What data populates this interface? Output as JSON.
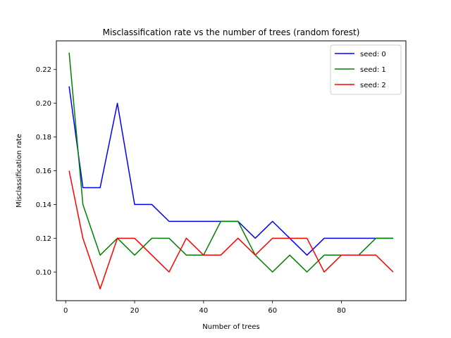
{
  "chart_data": {
    "type": "line",
    "title": "Misclassification rate vs the number of trees (random forest)",
    "xlabel": "Number of trees",
    "ylabel": "Misclassification rate",
    "xlim": [
      -2.7,
      98.7
    ],
    "ylim": [
      0.083,
      0.237
    ],
    "xticks": [
      0,
      20,
      40,
      60,
      80
    ],
    "yticks": [
      0.1,
      0.12,
      0.14,
      0.16,
      0.18,
      0.2,
      0.22
    ],
    "grid": false,
    "legend_position": "top-right",
    "x": [
      1,
      5,
      10,
      15,
      20,
      25,
      30,
      35,
      40,
      45,
      50,
      55,
      60,
      65,
      70,
      75,
      80,
      85,
      90,
      95
    ],
    "series": [
      {
        "name": "seed: 0",
        "color": "#0000ff",
        "values": [
          0.21,
          0.15,
          0.15,
          0.2,
          0.14,
          0.14,
          0.13,
          0.13,
          0.13,
          0.13,
          0.13,
          0.12,
          0.13,
          0.12,
          0.11,
          0.12,
          0.12,
          0.12,
          0.12,
          0.12
        ]
      },
      {
        "name": "seed: 1",
        "color": "#008000",
        "values": [
          0.23,
          0.14,
          0.11,
          0.12,
          0.11,
          0.12,
          0.12,
          0.11,
          0.11,
          0.13,
          0.13,
          0.11,
          0.1,
          0.11,
          0.1,
          0.11,
          0.11,
          0.11,
          0.12,
          0.12
        ]
      },
      {
        "name": "seed: 2",
        "color": "#ff0000",
        "values": [
          0.16,
          0.12,
          0.09,
          0.12,
          0.12,
          0.11,
          0.1,
          0.12,
          0.11,
          0.11,
          0.12,
          0.11,
          0.12,
          0.12,
          0.12,
          0.1,
          0.11,
          0.11,
          0.11,
          0.1
        ]
      }
    ]
  }
}
